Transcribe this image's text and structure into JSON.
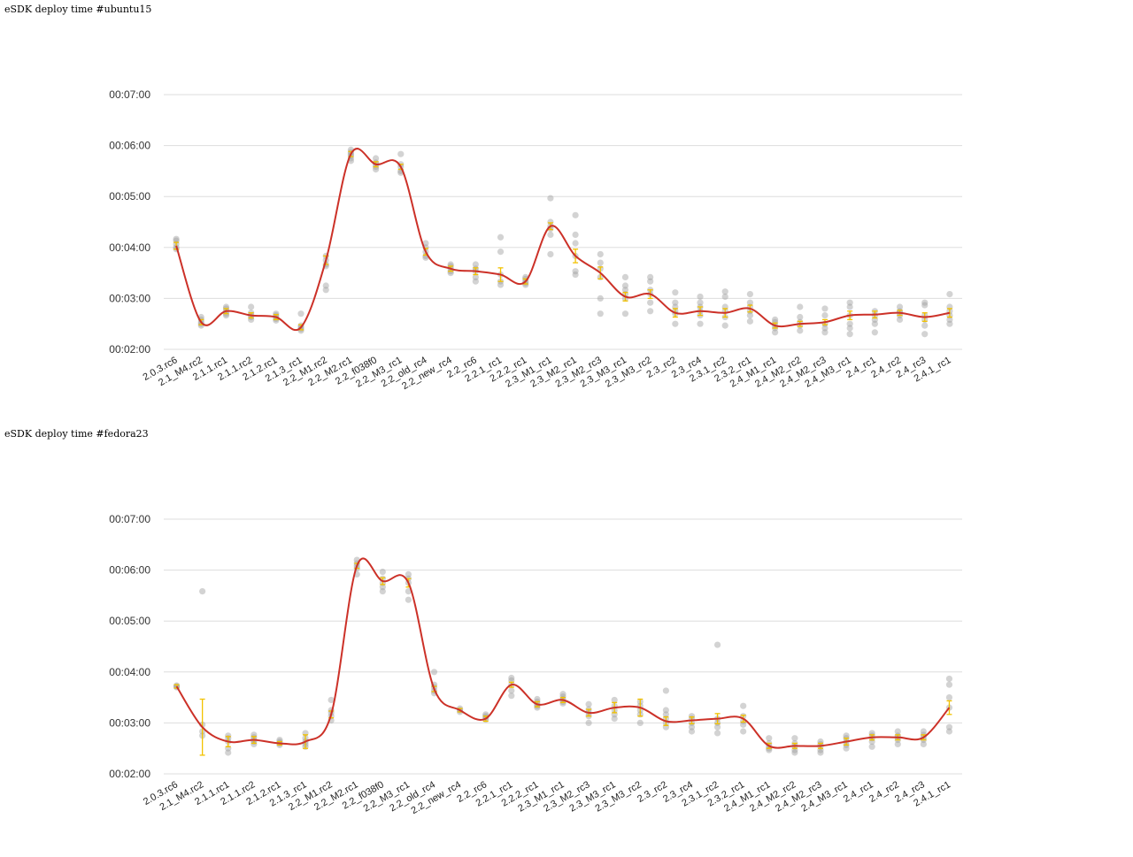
{
  "chart_data": [
    {
      "type": "scatter",
      "title": "eSDK deploy time #ubuntu15",
      "yticks": [
        "00:02:00",
        "00:03:00",
        "00:04:00",
        "00:05:00",
        "00:06:00",
        "00:07:00"
      ],
      "ylim_seconds": [
        120,
        420
      ],
      "categories": [
        "2.0.3.rc6",
        "2.1_M4.rc2",
        "2.1.1.rc1",
        "2.1.1.rc2",
        "2.1.2.rc1",
        "2.1.3_rc1",
        "2.2_M1.rc2",
        "2.2_M2.rc1",
        "2.2_f038f0",
        "2.2_M3_rc1",
        "2.2_old_rc4",
        "2.2_new_rc4",
        "2.2_rc6",
        "2.2.1_rc1",
        "2.2.2_rc1",
        "2.3_M1_rc1",
        "2.3_M2_rc1",
        "2.3_M2_rc3",
        "2.3_M3_rc1",
        "2.3_M3_rc2",
        "2.3_rc2",
        "2.3_rc4",
        "2.3.1_rc2",
        "2.3.2_rc1",
        "2.4_M1_rc1",
        "2.4_M2_rc2",
        "2.4_M2_rc3",
        "2.4_M3_rc1",
        "2.4_rc1",
        "2.4_rc2",
        "2.4_rc3",
        "2.4.1_rc1"
      ],
      "mean_seconds": [
        242,
        152,
        165,
        160,
        158,
        146,
        225,
        350,
        338,
        335,
        235,
        215,
        212,
        208,
        200,
        265,
        230,
        210,
        182,
        185,
        163,
        165,
        163,
        168,
        148,
        150,
        152,
        160,
        161,
        163,
        158,
        163
      ],
      "error_seconds": [
        4,
        3,
        3,
        3,
        3,
        3,
        5,
        3,
        3,
        3,
        4,
        3,
        4,
        8,
        3,
        4,
        8,
        7,
        5,
        5,
        5,
        5,
        5,
        4,
        3,
        3,
        3,
        5,
        4,
        3,
        5,
        5
      ],
      "samples_seconds": [
        [
          240,
          244,
          248,
          238,
          250
        ],
        [
          150,
          152,
          155,
          148,
          158
        ],
        [
          162,
          165,
          168,
          160,
          170
        ],
        [
          158,
          160,
          163,
          155,
          170
        ],
        [
          156,
          158,
          160,
          154,
          162
        ],
        [
          144,
          146,
          148,
          142,
          162
        ],
        [
          190,
          220,
          225,
          230,
          218,
          195
        ],
        [
          345,
          350,
          352,
          348,
          342,
          355
        ],
        [
          335,
          338,
          340,
          332,
          345
        ],
        [
          330,
          335,
          338,
          328,
          350
        ],
        [
          230,
          235,
          240,
          228,
          245
        ],
        [
          212,
          215,
          218,
          210,
          220
        ],
        [
          200,
          212,
          220,
          205,
          215
        ],
        [
          196,
          200,
          235,
          208,
          252
        ],
        [
          198,
          200,
          203,
          196,
          205
        ],
        [
          232,
          265,
          270,
          255,
          298,
          262
        ],
        [
          208,
          230,
          245,
          255,
          278,
          212
        ],
        [
          180,
          205,
          215,
          222,
          232,
          162
        ],
        [
          162,
          180,
          185,
          190,
          205,
          195
        ],
        [
          165,
          175,
          185,
          190,
          200,
          205
        ],
        [
          150,
          162,
          165,
          170,
          175,
          187
        ],
        [
          150,
          160,
          165,
          170,
          175,
          182
        ],
        [
          148,
          158,
          165,
          170,
          182,
          188
        ],
        [
          153,
          160,
          165,
          170,
          175,
          185
        ],
        [
          140,
          145,
          148,
          152,
          155
        ],
        [
          142,
          148,
          152,
          158,
          170
        ],
        [
          140,
          145,
          150,
          160,
          168
        ],
        [
          138,
          145,
          150,
          160,
          170,
          175
        ],
        [
          140,
          150,
          155,
          160,
          165
        ],
        [
          155,
          160,
          163,
          165,
          170
        ],
        [
          138,
          148,
          155,
          160,
          172,
          175
        ],
        [
          150,
          155,
          160,
          165,
          170,
          185
        ]
      ]
    },
    {
      "type": "scatter",
      "title": "eSDK deploy time #fedora23",
      "yticks": [
        "00:02:00",
        "00:03:00",
        "00:04:00",
        "00:05:00",
        "00:06:00",
        "00:07:00"
      ],
      "ylim_seconds": [
        120,
        420
      ],
      "categories": [
        "2.0.3.rc6",
        "2.1_M4.rc2",
        "2.1.1.rc1",
        "2.1.1.rc2",
        "2.1.2.rc1",
        "2.1.3_rc1",
        "2.2_M1.rc2",
        "2.2_M2.rc1",
        "2.2_f038f0",
        "2.2_M3_rc1",
        "2.2_old_rc4",
        "2.2_new_rc4",
        "2.2_rc6",
        "2.2.1_rc1",
        "2.2.2_rc1",
        "2.3_M1_rc1",
        "2.3_M2_rc3",
        "2.3_M3_rc1",
        "2.3_M3_rc2",
        "2.3_rc2",
        "2.3_rc4",
        "2.3.1_rc2",
        "2.3.2_rc1",
        "2.4_M1_rc1",
        "2.4_M2_rc2",
        "2.4_M2_rc3",
        "2.4_M3_rc1",
        "2.4_rc1",
        "2.4_rc2",
        "2.4_rc3",
        "2.4.1_rc1"
      ],
      "mean_seconds": [
        223,
        175,
        158,
        160,
        156,
        158,
        190,
        365,
        347,
        345,
        220,
        195,
        185,
        225,
        202,
        207,
        192,
        198,
        198,
        182,
        183,
        185,
        185,
        153,
        153,
        153,
        158,
        163,
        163,
        163,
        198
      ],
      "error_seconds": [
        2,
        33,
        6,
        4,
        2,
        8,
        4,
        3,
        4,
        5,
        3,
        2,
        3,
        3,
        3,
        3,
        4,
        6,
        10,
        5,
        4,
        6,
        4,
        3,
        3,
        3,
        4,
        3,
        3,
        3,
        8
      ],
      "samples_seconds": [
        [
          222,
          224,
          223
        ],
        [
          165,
          170,
          178,
          335
        ],
        [
          145,
          150,
          158,
          162,
          165
        ],
        [
          155,
          158,
          160,
          163,
          166
        ],
        [
          154,
          156,
          158,
          160
        ],
        [
          152,
          155,
          158,
          162,
          168
        ],
        [
          183,
          188,
          192,
          195,
          207
        ],
        [
          355,
          362,
          365,
          368,
          372
        ],
        [
          335,
          340,
          345,
          350,
          358
        ],
        [
          325,
          335,
          345,
          350,
          355
        ],
        [
          215,
          218,
          222,
          225,
          240
        ],
        [
          193,
          195,
          197
        ],
        [
          184,
          186,
          188,
          190
        ],
        [
          212,
          218,
          225,
          230,
          233
        ],
        [
          198,
          200,
          202,
          205,
          208
        ],
        [
          203,
          205,
          208,
          211,
          214
        ],
        [
          180,
          188,
          192,
          196,
          202
        ],
        [
          185,
          190,
          195,
          200,
          207
        ],
        [
          180,
          190,
          195,
          200,
          205
        ],
        [
          175,
          180,
          185,
          190,
          195,
          218
        ],
        [
          170,
          175,
          180,
          185,
          188
        ],
        [
          168,
          175,
          180,
          185,
          272
        ],
        [
          170,
          178,
          182,
          188,
          200
        ],
        [
          148,
          150,
          153,
          156,
          162
        ],
        [
          145,
          148,
          152,
          156,
          162
        ],
        [
          145,
          148,
          152,
          155,
          158
        ],
        [
          150,
          154,
          158,
          162,
          165
        ],
        [
          152,
          158,
          162,
          165,
          168
        ],
        [
          155,
          160,
          163,
          165,
          170
        ],
        [
          155,
          160,
          163,
          166,
          170
        ],
        [
          170,
          175,
          198,
          210,
          225,
          232
        ]
      ]
    }
  ]
}
